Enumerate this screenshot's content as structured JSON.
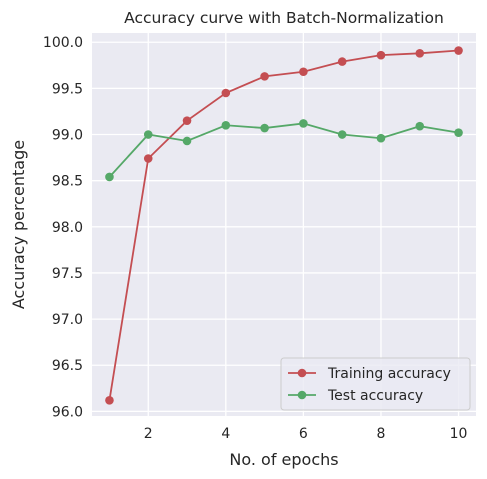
{
  "chart_data": {
    "type": "line",
    "title": "Accuracy curve with Batch-Normalization",
    "xlabel": "No. of epochs",
    "ylabel": "Accuracy percentage",
    "x": [
      1,
      2,
      3,
      4,
      5,
      6,
      7,
      8,
      9,
      10
    ],
    "xlim": [
      0.55,
      10.45
    ],
    "ylim": [
      95.95,
      100.1
    ],
    "xticks": [
      2,
      4,
      6,
      8,
      10
    ],
    "yticks": [
      96.0,
      96.5,
      97.0,
      97.5,
      98.0,
      98.5,
      99.0,
      99.5,
      100.0
    ],
    "xtick_labels": [
      "2",
      "4",
      "6",
      "8",
      "10"
    ],
    "ytick_labels": [
      "96.0",
      "96.5",
      "97.0",
      "97.5",
      "98.0",
      "98.5",
      "99.0",
      "99.5",
      "100.0"
    ],
    "grid": true,
    "legend_position": "bottom-right",
    "series": [
      {
        "name": "Training accuracy",
        "color": "#c44e52",
        "values": [
          96.12,
          98.74,
          99.15,
          99.45,
          99.63,
          99.68,
          99.79,
          99.86,
          99.88,
          99.91
        ]
      },
      {
        "name": "Test accuracy",
        "color": "#55a868",
        "values": [
          98.54,
          99.0,
          98.93,
          99.1,
          99.07,
          99.12,
          99.0,
          98.96,
          99.09,
          99.02
        ]
      }
    ]
  }
}
